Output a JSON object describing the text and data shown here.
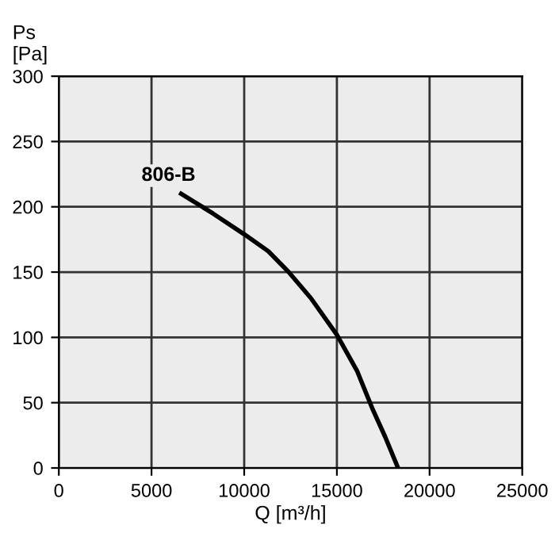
{
  "chart_data": {
    "type": "line",
    "xlabel": "Q [m³/h]",
    "ylabel": "Ps\n[Pa]",
    "series": [
      {
        "name": "806-B",
        "color": "#000000",
        "x": [
          6600,
          8300,
          10000,
          11300,
          12400,
          13600,
          15000,
          16100,
          16900,
          17600,
          18300
        ],
        "values": [
          210,
          195,
          179,
          166,
          150,
          130,
          102,
          74,
          46,
          24,
          0
        ]
      }
    ],
    "xlim": [
      0,
      25000
    ],
    "ylim": [
      0,
      300
    ],
    "xticks": [
      0,
      5000,
      10000,
      15000,
      20000,
      25000
    ],
    "yticks": [
      0,
      50,
      100,
      150,
      200,
      250,
      300
    ],
    "grid": true,
    "marker": "none",
    "line_style": "solid"
  }
}
